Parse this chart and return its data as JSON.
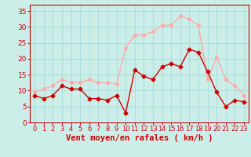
{
  "x": [
    0,
    1,
    2,
    3,
    4,
    5,
    6,
    7,
    8,
    9,
    10,
    11,
    12,
    13,
    14,
    15,
    16,
    17,
    18,
    19,
    20,
    21,
    22,
    23
  ],
  "wind_avg": [
    8.5,
    7.5,
    8.5,
    11.5,
    10.5,
    10.5,
    7.5,
    7.5,
    7.0,
    8.5,
    3.0,
    16.5,
    14.5,
    13.5,
    17.5,
    18.5,
    17.5,
    23.0,
    22.0,
    16.0,
    9.5,
    5.0,
    7.0,
    6.5
  ],
  "wind_gust": [
    9.5,
    10.5,
    11.5,
    13.5,
    12.5,
    12.5,
    13.5,
    12.5,
    12.5,
    12.0,
    23.5,
    27.5,
    27.5,
    28.5,
    30.5,
    30.5,
    33.5,
    32.5,
    30.5,
    13.5,
    20.5,
    13.5,
    11.5,
    8.5
  ],
  "avg_color": "#cc0000",
  "gust_color": "#ffaaaa",
  "bg_color": "#cceee8",
  "grid_color": "#aadddd",
  "xlabel": "Vent moyen/en rafales ( km/h )",
  "ylim": [
    0,
    37
  ],
  "xlim_min": -0.5,
  "xlim_max": 23.5,
  "yticks": [
    0,
    5,
    10,
    15,
    20,
    25,
    30,
    35
  ],
  "xticks": [
    0,
    1,
    2,
    3,
    4,
    5,
    6,
    7,
    8,
    9,
    10,
    11,
    12,
    13,
    14,
    15,
    16,
    17,
    18,
    19,
    20,
    21,
    22,
    23
  ],
  "marker_size": 2.5,
  "line_width": 1.0,
  "axis_color": "#cc0000",
  "tick_color": "#cc0000",
  "xlabel_color": "#cc0000",
  "xlabel_fontsize": 7.5,
  "tick_fontsize": 6.0,
  "ytick_fontsize": 6.5
}
